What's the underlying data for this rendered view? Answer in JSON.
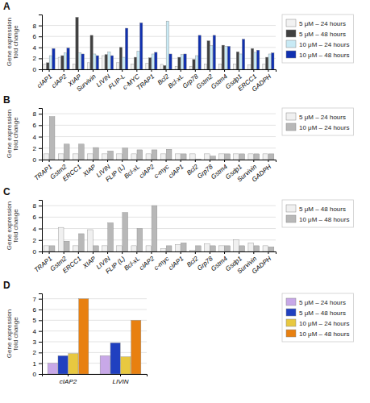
{
  "chart_data": [
    {
      "type": "bar",
      "title": "A",
      "ylabel": "Gene expression\nfold change",
      "categories": [
        "cIAP1",
        "cIAP2",
        "XIAP",
        "Survivin",
        "LIVIN",
        "FLIP-L",
        "c-MYC",
        "TRAP1",
        "Bcl2",
        "Bcl-xL",
        "Grp78",
        "Gstm2",
        "Gstm4",
        "Gsdp1",
        "ERCC1",
        "GADPH"
      ],
      "series": [
        {
          "name": "5 μM – 24 hours",
          "color": "#f2f2f2",
          "values": [
            1.0,
            2.2,
            1.0,
            1.2,
            2.5,
            1.2,
            1.0,
            1.1,
            0.9,
            0.5,
            0.5,
            1.0,
            1.0,
            1.0,
            0.8,
            1.0
          ]
        },
        {
          "name": "5 μM – 48 hours",
          "color": "#404040",
          "values": [
            1.2,
            2.5,
            9.5,
            6.2,
            2.7,
            4.0,
            2.2,
            2.1,
            0.7,
            2.2,
            1.8,
            5.2,
            4.4,
            3.2,
            3.8,
            2.2
          ]
        },
        {
          "name": "10 μM – 24 hours",
          "color": "#c8eaf5",
          "values": [
            2.5,
            3.0,
            3.0,
            2.8,
            3.2,
            2.2,
            3.3,
            2.8,
            8.8,
            2.7,
            2.5,
            4.3,
            4.2,
            2.8,
            3.1,
            2.8
          ]
        },
        {
          "name": "10 μM – 48 hours",
          "color": "#1030b0",
          "values": [
            3.8,
            3.9,
            2.8,
            2.5,
            2.5,
            7.5,
            8.5,
            3.1,
            2.8,
            2.8,
            6.2,
            6.2,
            4.2,
            5.5,
            3.5,
            3.0
          ]
        }
      ],
      "ylim": [
        0,
        10
      ],
      "yticks": [
        0,
        2,
        4,
        6,
        8
      ],
      "grid": true,
      "legend": "right"
    },
    {
      "type": "bar",
      "title": "B",
      "ylabel": "Gene expression\nfold change",
      "categories": [
        "TRAP1",
        "Gstm2",
        "ERCC1",
        "XIAP",
        "LIVIN",
        "FLIP (L)",
        "Bcl-xL",
        "cIAP2",
        "c-myc",
        "cIAP1",
        "Bcl2",
        "Grp78",
        "Gstm4",
        "Gsdp1",
        "Survivin",
        "GADPH"
      ],
      "series": [
        {
          "name": "5 μM – 24 hours",
          "color": "#f0f0f0",
          "values": [
            1.0,
            1.0,
            1.0,
            1.0,
            1.0,
            1.0,
            1.0,
            1.0,
            1.0,
            1.0,
            1.0,
            1.0,
            1.0,
            1.0,
            1.0,
            1.0
          ]
        },
        {
          "name": "10 μM – 24 hours",
          "color": "#b8b8b8",
          "values": [
            7.5,
            2.7,
            2.7,
            2.1,
            1.5,
            2.0,
            1.7,
            1.7,
            1.8,
            1.0,
            0.05,
            0.6,
            1.0,
            1.0,
            1.0,
            1.0
          ]
        }
      ],
      "ylim": [
        0,
        9
      ],
      "yticks": [
        0,
        2,
        4,
        6,
        8
      ],
      "grid": true,
      "legend": "right"
    },
    {
      "type": "bar",
      "title": "C",
      "ylabel": "Gene expression\nfold change",
      "categories": [
        "TRAP1",
        "Gstm2",
        "ERCC1",
        "XIAP",
        "LIVIN",
        "FLIP (L)",
        "Bcl-xL",
        "cIAP2",
        "c-myc",
        "cIAP1",
        "Bcl2",
        "Grp78",
        "Gstm4",
        "Gsdp1",
        "Survivin",
        "GADPH"
      ],
      "series": [
        {
          "name": "5 μM – 48 hours",
          "color": "#f0f0f0",
          "values": [
            1.0,
            4.2,
            1.0,
            3.8,
            1.0,
            1.0,
            1.0,
            1.0,
            0.5,
            1.2,
            0.2,
            1.3,
            1.0,
            2.0,
            1.5,
            1.0
          ]
        },
        {
          "name": "10 μM – 48 hours",
          "color": "#b8b8b8",
          "values": [
            1.0,
            1.8,
            3.1,
            1.0,
            5.0,
            6.8,
            4.0,
            8.0,
            1.0,
            1.5,
            1.0,
            1.0,
            1.0,
            1.0,
            1.0,
            0.8
          ]
        }
      ],
      "ylim": [
        0,
        9
      ],
      "yticks": [
        0,
        2,
        4,
        6,
        8
      ],
      "grid": true,
      "legend": "right"
    },
    {
      "type": "bar",
      "title": "D",
      "ylabel": "Gene expression\nfold change",
      "categories": [
        "cIAP2",
        "LIVIN"
      ],
      "series": [
        {
          "name": "5 μM – 24 hours",
          "color": "#c8a8e8",
          "values": [
            1.0,
            1.7
          ]
        },
        {
          "name": "5 μM – 48 hours",
          "color": "#2040c0",
          "values": [
            1.7,
            2.9
          ]
        },
        {
          "name": "10 μM – 24 hours",
          "color": "#e8c840",
          "values": [
            1.9,
            1.6
          ]
        },
        {
          "name": "10 μM – 48 hours",
          "color": "#e88010",
          "values": [
            7.0,
            5.0
          ]
        }
      ],
      "ylim": [
        0,
        7.5
      ],
      "yticks": [
        0,
        1,
        2,
        3,
        4,
        5,
        6,
        7
      ],
      "grid": true,
      "legend": "right"
    }
  ]
}
